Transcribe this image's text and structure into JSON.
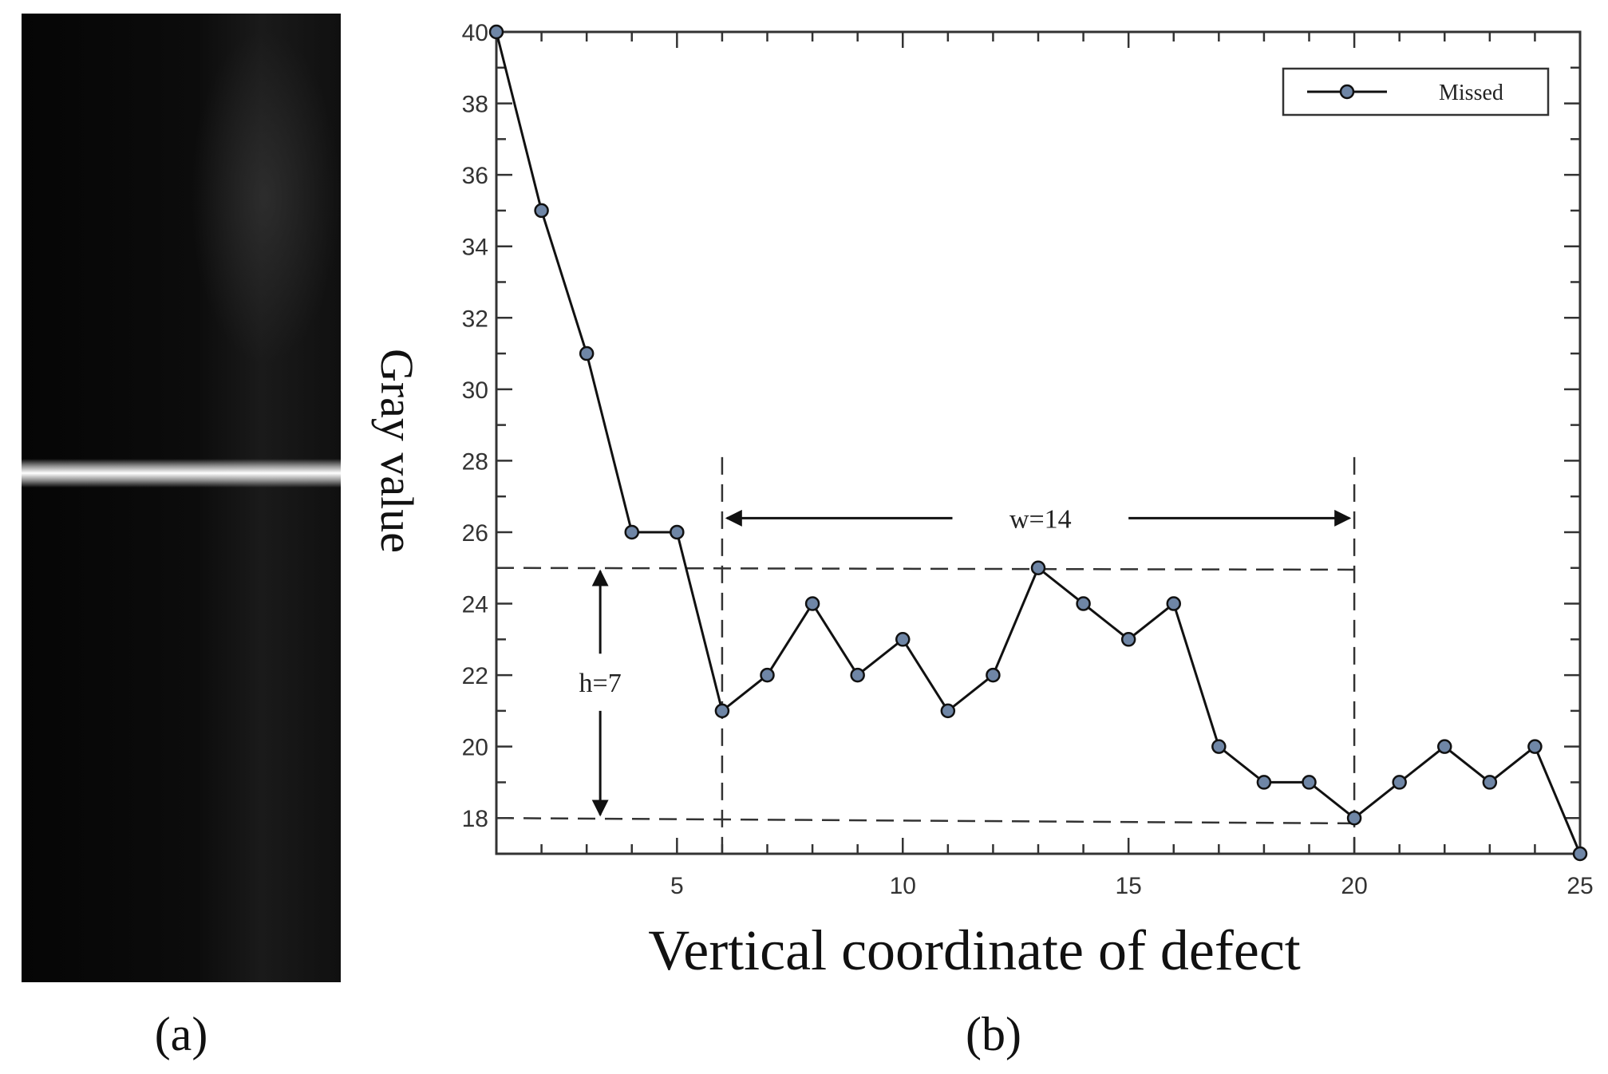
{
  "panels": {
    "a_label": "(a)",
    "b_label": "(b)"
  },
  "chart_data": {
    "type": "line",
    "title": "",
    "xlabel": "Vertical coordinate of defect",
    "ylabel": "Gray value",
    "xlim": [
      1,
      25
    ],
    "ylim": [
      17,
      40
    ],
    "xticks": [
      5,
      10,
      15,
      20,
      25
    ],
    "yticks": [
      18,
      20,
      22,
      24,
      26,
      28,
      30,
      32,
      34,
      36,
      38,
      40
    ],
    "legend_position": "top-right",
    "grid": false,
    "series": [
      {
        "name": "Missed",
        "color": "#111111",
        "marker_color": "#6f86a6",
        "x": [
          1,
          2,
          3,
          4,
          5,
          6,
          7,
          8,
          9,
          10,
          11,
          12,
          13,
          14,
          15,
          16,
          17,
          18,
          19,
          20,
          21,
          22,
          23,
          24,
          25
        ],
        "values": [
          40,
          35,
          31,
          26,
          26,
          21,
          22,
          24,
          22,
          23,
          21,
          22,
          25,
          24,
          23,
          24,
          20,
          19,
          19,
          18,
          19,
          20,
          19,
          20,
          17
        ]
      }
    ],
    "annotations": {
      "width_label": "w=14",
      "width_range": [
        6,
        20
      ],
      "width_level": 28,
      "height_label": "h=7",
      "height_range": [
        18,
        25
      ],
      "height_x": 3.3
    }
  }
}
